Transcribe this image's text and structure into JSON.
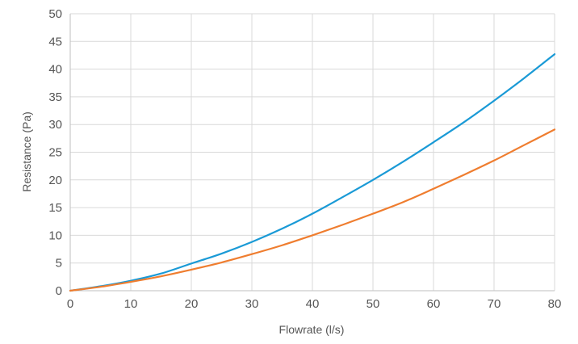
{
  "chart_data": {
    "type": "line",
    "title": "",
    "xlabel": "Flowrate (l/s)",
    "ylabel": "Resistance (Pa)",
    "xlim": [
      0,
      80
    ],
    "ylim": [
      0,
      50
    ],
    "xticks": [
      0,
      10,
      20,
      30,
      40,
      50,
      60,
      70,
      80
    ],
    "yticks": [
      0,
      5,
      10,
      15,
      20,
      25,
      30,
      35,
      40,
      45,
      50
    ],
    "grid": true,
    "legend": "none",
    "x": [
      0,
      5,
      10,
      15,
      20,
      25,
      30,
      35,
      40,
      45,
      50,
      55,
      60,
      65,
      70,
      75,
      80
    ],
    "series": [
      {
        "color": "#1a9ad6",
        "values": [
          0,
          0.8,
          1.8,
          3.1,
          4.9,
          6.7,
          8.8,
          11.2,
          13.9,
          16.9,
          20.0,
          23.3,
          26.8,
          30.4,
          34.3,
          38.4,
          42.7
        ]
      },
      {
        "color": "#ef7d2f",
        "values": [
          0,
          0.7,
          1.6,
          2.6,
          3.8,
          5.1,
          6.6,
          8.2,
          10.0,
          11.9,
          13.9,
          16.0,
          18.4,
          20.9,
          23.5,
          26.3,
          29.1
        ]
      }
    ]
  }
}
